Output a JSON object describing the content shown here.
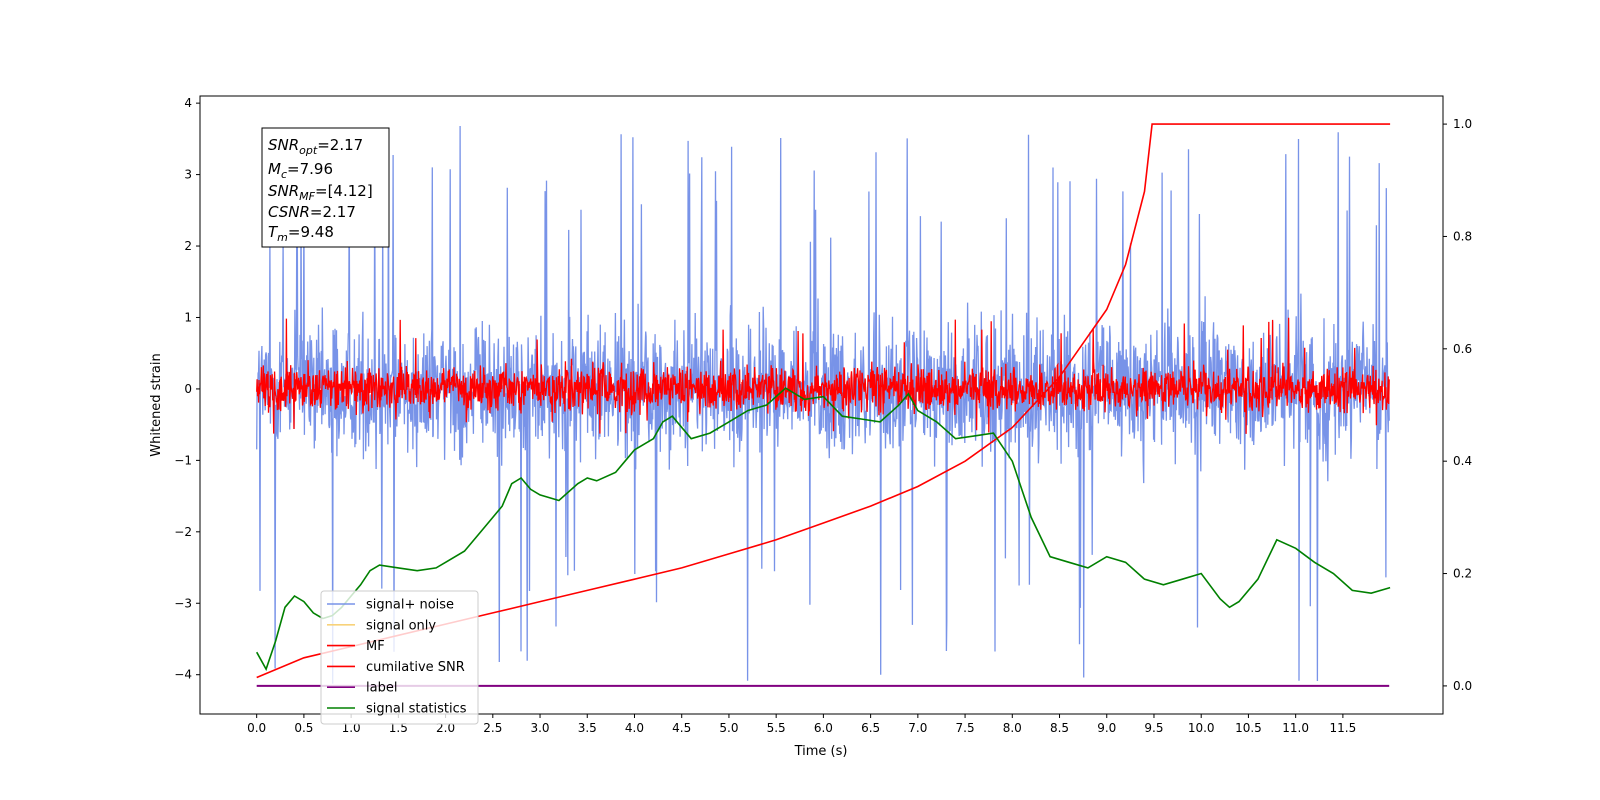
{
  "chart_data": {
    "type": "line",
    "xlabel": "Time (s)",
    "ylabel": "Whitened strain",
    "xlim": [
      -0.6,
      12.56
    ],
    "ylim": [
      -4.55,
      4.1
    ],
    "y2lim": [
      -0.05,
      1.05
    ],
    "grid": false,
    "legend_position": "lower-left",
    "x_ticks": [
      "0.0",
      "0.5",
      "1.0",
      "1.5",
      "2.0",
      "2.5",
      "3.0",
      "3.5",
      "4.0",
      "4.5",
      "5.0",
      "5.5",
      "6.0",
      "6.5",
      "7.0",
      "7.5",
      "8.0",
      "8.5",
      "9.0",
      "9.5",
      "10.0",
      "10.5",
      "11.0",
      "11.5"
    ],
    "y_ticks": [
      "4",
      "3",
      "2",
      "1",
      "0",
      "−1",
      "−2",
      "−3",
      "−4"
    ],
    "y2_ticks": [
      "1.0",
      "0.8",
      "0.6",
      "0.4",
      "0.2",
      "0.0"
    ],
    "annotation": {
      "snr_opt": {
        "base": "SNR",
        "sub": "opt",
        "value": "=2.17"
      },
      "mc": {
        "base": "M",
        "sub": "c",
        "value": "=7.96"
      },
      "snr_mf": {
        "base": "SNR",
        "sub": "MF",
        "value": "=[4.12]"
      },
      "csnr": {
        "base": "CSNR",
        "value": "=2.17"
      },
      "tm": {
        "base": "T",
        "sub": "m",
        "value": "=9.48"
      }
    },
    "legend": [
      {
        "label": "signal+ noise",
        "color": "#7893e8"
      },
      {
        "label": "signal only",
        "color": "#f8d27a"
      },
      {
        "label": "MF",
        "color": "#ff0000"
      },
      {
        "label": "cumilative SNR",
        "color": "#ff0000"
      },
      {
        "label": "label",
        "color": "#800080"
      },
      {
        "label": "signal statistics",
        "color": "#008000"
      }
    ],
    "series": [
      {
        "name": "signal+ noise",
        "axis": "left",
        "color": "#7893e8",
        "x_range": [
          0,
          11.99
        ],
        "band": [
          -1.2,
          1.2
        ],
        "min": -4.15,
        "max": 3.7
      },
      {
        "name": "MF",
        "axis": "left",
        "color": "#ff0000",
        "x_range": [
          0,
          11.99
        ],
        "band": [
          -0.4,
          0.4
        ],
        "min": -0.65,
        "max": 1.0
      },
      {
        "name": "cumilative SNR",
        "axis": "right",
        "color": "#ff0000",
        "x": [
          0.0,
          0.5,
          1.0,
          1.5,
          2.0,
          2.5,
          3.0,
          3.5,
          4.0,
          4.5,
          5.0,
          5.5,
          6.0,
          6.5,
          7.0,
          7.5,
          8.0,
          8.5,
          9.0,
          9.2,
          9.4,
          9.48,
          12.0
        ],
        "values": [
          0.015,
          0.05,
          0.07,
          0.09,
          0.11,
          0.13,
          0.15,
          0.17,
          0.19,
          0.21,
          0.235,
          0.26,
          0.29,
          0.32,
          0.355,
          0.4,
          0.46,
          0.55,
          0.67,
          0.75,
          0.88,
          1.0,
          1.0
        ]
      },
      {
        "name": "label",
        "axis": "right",
        "color": "#800080",
        "x": [
          0.0,
          11.99
        ],
        "values": [
          0.0,
          0.0
        ]
      },
      {
        "name": "signal statistics",
        "axis": "right",
        "color": "#008000",
        "x": [
          0.0,
          0.1,
          0.2,
          0.3,
          0.4,
          0.5,
          0.6,
          0.7,
          0.8,
          0.9,
          1.0,
          1.1,
          1.2,
          1.3,
          1.5,
          1.7,
          1.9,
          2.0,
          2.2,
          2.4,
          2.5,
          2.6,
          2.7,
          2.8,
          2.9,
          3.0,
          3.2,
          3.4,
          3.5,
          3.6,
          3.8,
          3.9,
          4.0,
          4.2,
          4.3,
          4.4,
          4.6,
          4.8,
          5.0,
          5.2,
          5.4,
          5.6,
          5.8,
          6.0,
          6.2,
          6.4,
          6.6,
          6.8,
          6.9,
          7.0,
          7.2,
          7.4,
          7.6,
          7.8,
          8.0,
          8.2,
          8.4,
          8.6,
          8.8,
          9.0,
          9.2,
          9.4,
          9.6,
          9.8,
          10.0,
          10.2,
          10.3,
          10.4,
          10.6,
          10.8,
          11.0,
          11.2,
          11.4,
          11.6,
          11.8,
          12.0
        ],
        "values": [
          0.06,
          0.03,
          0.08,
          0.14,
          0.16,
          0.15,
          0.13,
          0.12,
          0.125,
          0.14,
          0.16,
          0.18,
          0.205,
          0.215,
          0.21,
          0.205,
          0.21,
          0.22,
          0.24,
          0.28,
          0.3,
          0.32,
          0.36,
          0.37,
          0.35,
          0.34,
          0.33,
          0.36,
          0.37,
          0.365,
          0.38,
          0.4,
          0.42,
          0.44,
          0.47,
          0.48,
          0.44,
          0.45,
          0.47,
          0.49,
          0.5,
          0.53,
          0.51,
          0.515,
          0.48,
          0.475,
          0.47,
          0.5,
          0.52,
          0.49,
          0.47,
          0.44,
          0.445,
          0.45,
          0.4,
          0.3,
          0.23,
          0.22,
          0.21,
          0.23,
          0.22,
          0.19,
          0.18,
          0.19,
          0.2,
          0.155,
          0.14,
          0.15,
          0.19,
          0.26,
          0.245,
          0.22,
          0.2,
          0.17,
          0.165,
          0.175
        ]
      }
    ]
  }
}
